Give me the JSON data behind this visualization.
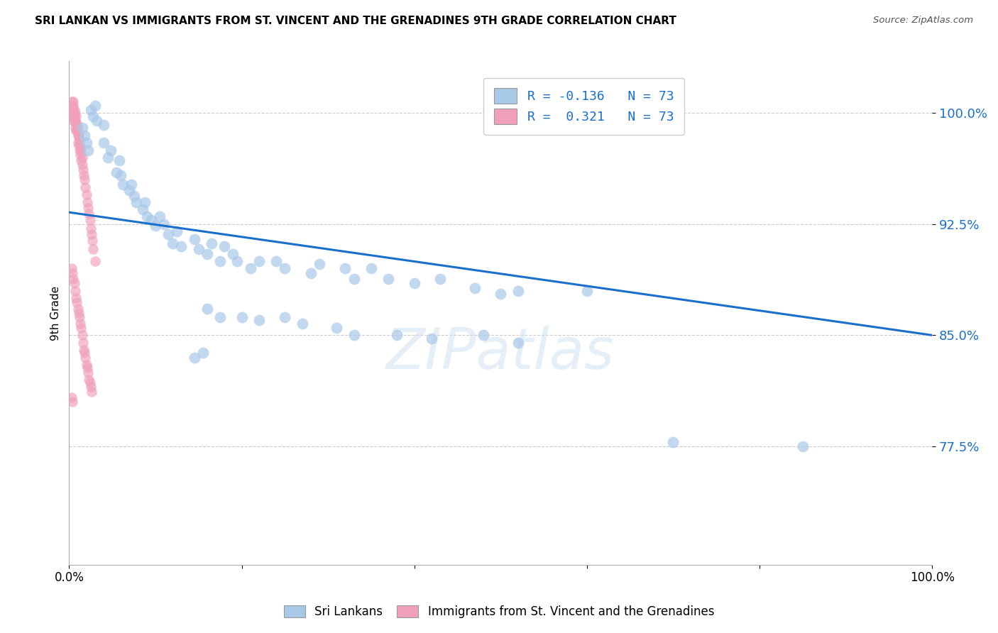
{
  "title": "SRI LANKAN VS IMMIGRANTS FROM ST. VINCENT AND THE GRENADINES 9TH GRADE CORRELATION CHART",
  "source": "Source: ZipAtlas.com",
  "ylabel": "9th Grade",
  "blue_color": "#a8c8e8",
  "pink_color": "#f0a0b8",
  "line_color": "#1a6fcc",
  "legend_line1": "R = -0.136   N = 73",
  "legend_line2": "R =  0.321   N = 73",
  "trend_line_x": [
    0.0,
    1.0
  ],
  "trend_line_y": [
    0.933,
    0.85
  ],
  "watermark": "ZIPatlas",
  "xlim": [
    0.0,
    1.0
  ],
  "ylim": [
    0.695,
    1.035
  ],
  "yticks": [
    0.775,
    0.85,
    0.925,
    1.0
  ],
  "ytick_labels": [
    "77.5%",
    "85.0%",
    "92.5%",
    "100.0%"
  ],
  "xticks": [
    0.0,
    0.2,
    0.4,
    0.6,
    0.8,
    1.0
  ],
  "xtick_labels": [
    "0.0%",
    "",
    "",
    "",
    "",
    "100.0%"
  ],
  "blue_dots_x": [
    0.025,
    0.028,
    0.03,
    0.032,
    0.04,
    0.04,
    0.045,
    0.048,
    0.055,
    0.058,
    0.06,
    0.062,
    0.07,
    0.072,
    0.075,
    0.078,
    0.085,
    0.088,
    0.09,
    0.095,
    0.1,
    0.105,
    0.11,
    0.115,
    0.12,
    0.125,
    0.13,
    0.145,
    0.15,
    0.16,
    0.165,
    0.175,
    0.18,
    0.19,
    0.195,
    0.21,
    0.22,
    0.24,
    0.25,
    0.28,
    0.29,
    0.32,
    0.33,
    0.35,
    0.37,
    0.4,
    0.43,
    0.47,
    0.5,
    0.52,
    0.6,
    0.7,
    0.85,
    0.015,
    0.018,
    0.02,
    0.022
  ],
  "blue_dots_y": [
    1.002,
    0.998,
    1.005,
    0.995,
    0.992,
    0.98,
    0.97,
    0.975,
    0.96,
    0.968,
    0.958,
    0.952,
    0.948,
    0.952,
    0.944,
    0.94,
    0.935,
    0.94,
    0.93,
    0.928,
    0.924,
    0.93,
    0.925,
    0.918,
    0.912,
    0.92,
    0.91,
    0.915,
    0.908,
    0.905,
    0.912,
    0.9,
    0.91,
    0.905,
    0.9,
    0.895,
    0.9,
    0.9,
    0.895,
    0.892,
    0.898,
    0.895,
    0.888,
    0.895,
    0.888,
    0.885,
    0.888,
    0.882,
    0.878,
    0.88,
    0.88,
    0.778,
    0.775,
    0.99,
    0.985,
    0.98,
    0.975
  ],
  "blue_dots_x2": [
    0.16,
    0.175,
    0.25,
    0.27,
    0.31,
    0.33,
    0.38,
    0.42,
    0.48,
    0.52,
    0.2,
    0.22,
    0.145,
    0.155
  ],
  "blue_dots_y2": [
    0.868,
    0.862,
    0.862,
    0.858,
    0.855,
    0.85,
    0.85,
    0.848,
    0.85,
    0.845,
    0.862,
    0.86,
    0.835,
    0.838
  ],
  "pink_dots_x": [
    0.002,
    0.003,
    0.003,
    0.004,
    0.004,
    0.004,
    0.005,
    0.005,
    0.005,
    0.005,
    0.006,
    0.006,
    0.006,
    0.007,
    0.007,
    0.007,
    0.008,
    0.008,
    0.008,
    0.009,
    0.009,
    0.01,
    0.01,
    0.01,
    0.011,
    0.011,
    0.012,
    0.012,
    0.013,
    0.013,
    0.014,
    0.014,
    0.015,
    0.015,
    0.016,
    0.017,
    0.018,
    0.019,
    0.02,
    0.021,
    0.022,
    0.023,
    0.024,
    0.025,
    0.026,
    0.027,
    0.028,
    0.03,
    0.003,
    0.004,
    0.005,
    0.006,
    0.007,
    0.008,
    0.009,
    0.01,
    0.011,
    0.012,
    0.013,
    0.014,
    0.015,
    0.016,
    0.017,
    0.018,
    0.019,
    0.02,
    0.021,
    0.022,
    0.023,
    0.024,
    0.025,
    0.026,
    0.003,
    0.004
  ],
  "pink_dots_y": [
    1.005,
    1.008,
    1.0,
    1.005,
    0.998,
    1.002,
    1.005,
    1.0,
    0.995,
    1.008,
    1.002,
    0.998,
    0.995,
    1.0,
    0.995,
    0.99,
    0.998,
    0.993,
    0.988,
    0.993,
    0.988,
    0.99,
    0.985,
    0.98,
    0.985,
    0.978,
    0.982,
    0.975,
    0.978,
    0.972,
    0.975,
    0.968,
    0.97,
    0.965,
    0.962,
    0.958,
    0.955,
    0.95,
    0.945,
    0.94,
    0.936,
    0.932,
    0.928,
    0.922,
    0.918,
    0.914,
    0.908,
    0.9,
    0.895,
    0.892,
    0.888,
    0.885,
    0.88,
    0.875,
    0.872,
    0.868,
    0.865,
    0.862,
    0.858,
    0.855,
    0.85,
    0.845,
    0.84,
    0.838,
    0.835,
    0.83,
    0.828,
    0.825,
    0.82,
    0.818,
    0.815,
    0.812,
    0.808,
    0.805
  ]
}
